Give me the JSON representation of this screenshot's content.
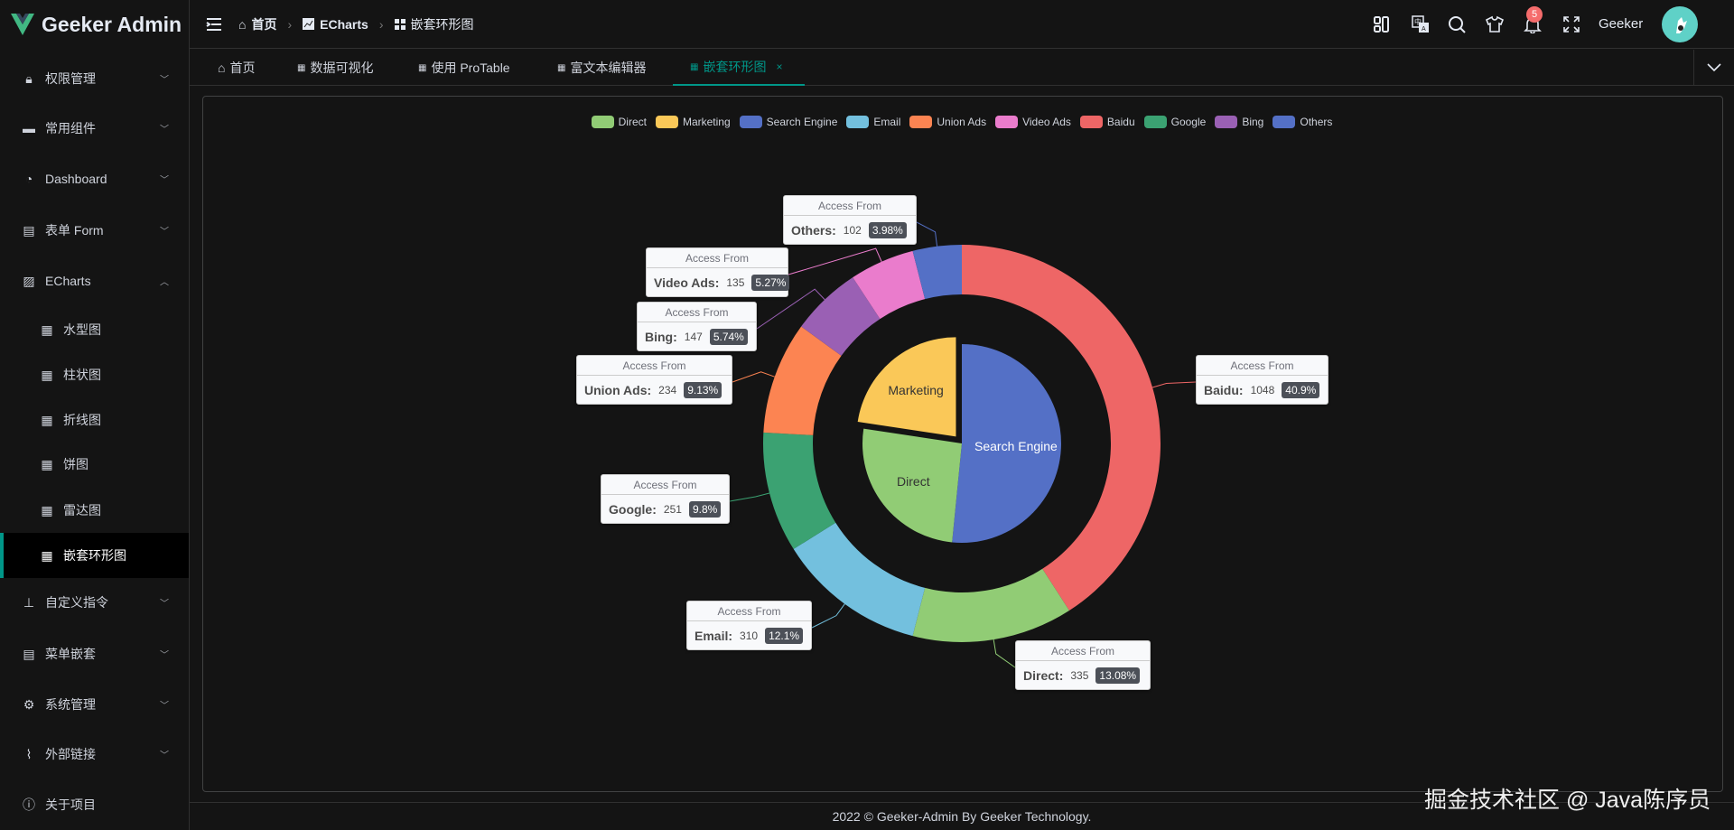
{
  "app": {
    "title": "Geeker Admin"
  },
  "sidebar": {
    "items": [
      {
        "label": "权限管理",
        "icon": "lock-icon"
      },
      {
        "label": "常用组件",
        "icon": "briefcase-icon"
      },
      {
        "label": "Dashboard",
        "icon": "dashboard-icon"
      },
      {
        "label": "表单 Form",
        "icon": "document-icon"
      },
      {
        "label": "ECharts",
        "icon": "chart-icon",
        "expanded": true
      },
      {
        "label": "水型图",
        "icon": "grid-icon"
      },
      {
        "label": "柱状图",
        "icon": "grid-icon"
      },
      {
        "label": "折线图",
        "icon": "grid-icon"
      },
      {
        "label": "饼图",
        "icon": "grid-icon"
      },
      {
        "label": "雷达图",
        "icon": "grid-icon"
      },
      {
        "label": "嵌套环形图",
        "icon": "grid-icon",
        "active": true
      },
      {
        "label": "自定义指令",
        "icon": "stamp-icon"
      },
      {
        "label": "菜单嵌套",
        "icon": "clipboard-icon"
      },
      {
        "label": "系统管理",
        "icon": "gear-icon"
      },
      {
        "label": "外部链接",
        "icon": "paperclip-icon"
      },
      {
        "label": "关于项目",
        "icon": "info-icon"
      }
    ]
  },
  "header": {
    "breadcrumb": [
      "首页",
      "ECharts",
      "嵌套环形图"
    ],
    "username": "Geeker",
    "notification_count": "5"
  },
  "tabs": [
    {
      "label": "首页"
    },
    {
      "label": "数据可视化"
    },
    {
      "label": "使用 ProTable"
    },
    {
      "label": "富文本编辑器"
    },
    {
      "label": "嵌套环形图",
      "active": true,
      "close": "×"
    }
  ],
  "footer": {
    "text": "2022 © Geeker-Admin By Geeker Technology."
  },
  "watermark": "掘金技术社区 @ Java陈序员",
  "colors": {
    "accent": "#009688"
  },
  "chart_data": {
    "type": "pie",
    "legend": {
      "position": "top",
      "items": [
        {
          "name": "Direct",
          "color": "#91cc75"
        },
        {
          "name": "Marketing",
          "color": "#fac858"
        },
        {
          "name": "Search Engine",
          "color": "#5470c6"
        },
        {
          "name": "Email",
          "color": "#73c0de"
        },
        {
          "name": "Union Ads",
          "color": "#fc8452"
        },
        {
          "name": "Video Ads",
          "color": "#ea7ccc"
        },
        {
          "name": "Baidu",
          "color": "#ee6666"
        },
        {
          "name": "Google",
          "color": "#3ba272"
        },
        {
          "name": "Bing",
          "color": "#9a60b4"
        },
        {
          "name": "Others",
          "color": "#5470c6"
        }
      ]
    },
    "inner": [
      {
        "name": "Search Engine",
        "value": 1548,
        "color": "#5470c6"
      },
      {
        "name": "Direct",
        "value": 775,
        "color": "#91cc75"
      },
      {
        "name": "Marketing",
        "value": 679,
        "color": "#fac858",
        "selected": true
      }
    ],
    "outer": [
      {
        "name": "Baidu",
        "value": 1048,
        "percent": "40.9%",
        "color": "#ee6666"
      },
      {
        "name": "Direct",
        "value": 335,
        "percent": "13.08%",
        "color": "#91cc75"
      },
      {
        "name": "Email",
        "value": 310,
        "percent": "12.1%",
        "color": "#73c0de"
      },
      {
        "name": "Google",
        "value": 251,
        "percent": "9.8%",
        "color": "#3ba272"
      },
      {
        "name": "Union Ads",
        "value": 234,
        "percent": "9.13%",
        "color": "#fc8452"
      },
      {
        "name": "Bing",
        "value": 147,
        "percent": "5.74%",
        "color": "#9a60b4"
      },
      {
        "name": "Video Ads",
        "value": 135,
        "percent": "5.27%",
        "color": "#ea7ccc"
      },
      {
        "name": "Others",
        "value": 102,
        "percent": "3.98%",
        "color": "#5470c6"
      }
    ],
    "label_title": "Access From"
  }
}
